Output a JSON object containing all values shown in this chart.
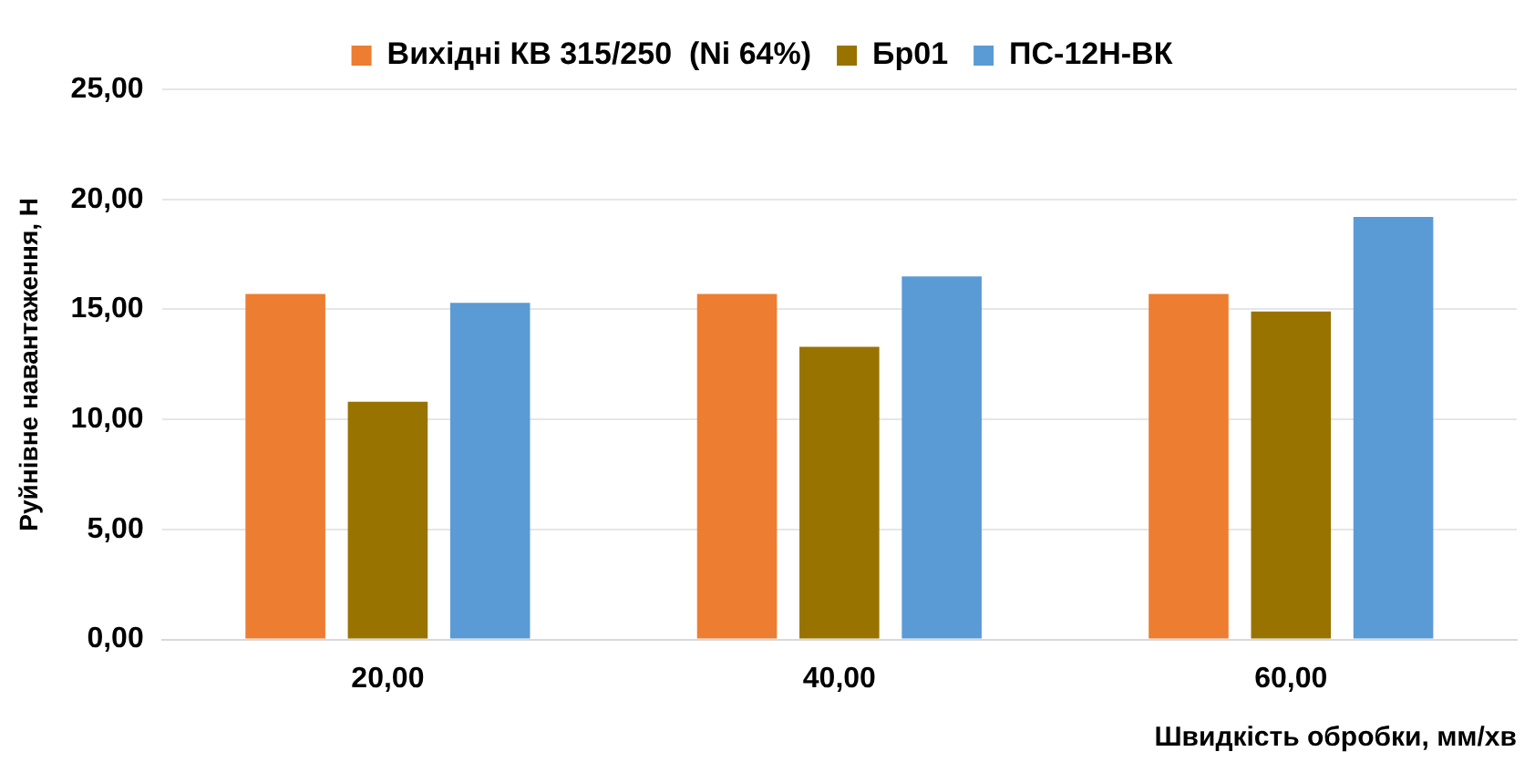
{
  "chart_data": {
    "type": "bar",
    "xlabel": "Швидкість обробки, мм/хв",
    "ylabel": "Руйнівне навантаження, Н",
    "categories": [
      "20,00",
      "40,00",
      "60,00"
    ],
    "series": [
      {
        "name": "Вихідні КВ 315/250  (Ni 64%)",
        "color": "#ed7d31",
        "values": [
          15.7,
          15.7,
          15.7
        ]
      },
      {
        "name": "Бр01",
        "color": "#997300",
        "values": [
          10.8,
          13.3,
          14.9
        ]
      },
      {
        "name": "ПС-12Н-ВК",
        "color": "#5b9bd5",
        "values": [
          15.3,
          16.5,
          19.2
        ]
      }
    ],
    "ylim": [
      0,
      25
    ],
    "yticks": [
      {
        "value": 0,
        "label": "0,00"
      },
      {
        "value": 5,
        "label": "5,00"
      },
      {
        "value": 10,
        "label": "10,00"
      },
      {
        "value": 15,
        "label": "15,00"
      },
      {
        "value": 20,
        "label": "20,00"
      },
      {
        "value": 25,
        "label": "25,00"
      }
    ],
    "grid": "y",
    "legend": "top"
  }
}
